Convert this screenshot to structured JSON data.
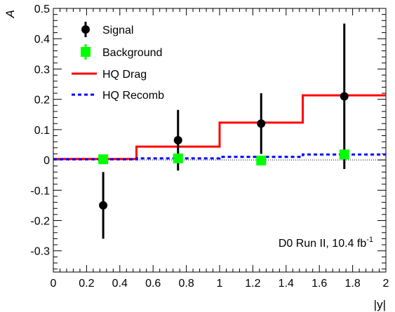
{
  "chart_data": {
    "type": "scatter",
    "title": "",
    "xlabel": "|y|",
    "ylabel": "A",
    "xlim": [
      0,
      2
    ],
    "ylim": [
      -0.37,
      0.5
    ],
    "x_ticks": [
      "0",
      "0.2",
      "0.4",
      "0.6",
      "0.8",
      "1",
      "1.2",
      "1.4",
      "1.6",
      "1.8",
      "2"
    ],
    "x_tick_values": [
      0,
      0.2,
      0.4,
      0.6,
      0.8,
      1.0,
      1.2,
      1.4,
      1.6,
      1.8,
      2.0
    ],
    "y_ticks": [
      "-0.3",
      "-0.2",
      "-0.1",
      "0",
      "0.1",
      "0.2",
      "0.3",
      "0.4",
      "0.5"
    ],
    "y_tick_values": [
      -0.3,
      -0.2,
      -0.1,
      0,
      0.1,
      0.2,
      0.3,
      0.4,
      0.5
    ],
    "grid": false,
    "legend_position": "top-left",
    "annotation": {
      "main": "D0 Run II, 10.4 fb",
      "superscript": "-1"
    },
    "series": [
      {
        "name": "Signal",
        "kind": "errorbar",
        "marker": "circle",
        "color": "#000000",
        "points": [
          {
            "x": 0.3,
            "y": -0.15,
            "ylow": -0.26,
            "yhigh": -0.04
          },
          {
            "x": 0.75,
            "y": 0.065,
            "ylow": -0.035,
            "yhigh": 0.165
          },
          {
            "x": 1.25,
            "y": 0.12,
            "ylow": 0.02,
            "yhigh": 0.22
          },
          {
            "x": 1.75,
            "y": 0.21,
            "ylow": -0.03,
            "yhigh": 0.45
          }
        ]
      },
      {
        "name": "Background",
        "kind": "errorbar",
        "marker": "square",
        "color": "#00ff00",
        "points": [
          {
            "x": 0.3,
            "y": 0.002,
            "ylow": -0.004,
            "yhigh": 0.008
          },
          {
            "x": 0.75,
            "y": 0.005,
            "ylow": -0.001,
            "yhigh": 0.011
          },
          {
            "x": 1.25,
            "y": -0.002,
            "ylow": -0.008,
            "yhigh": 0.004
          },
          {
            "x": 1.75,
            "y": 0.018,
            "ylow": 0.01,
            "yhigh": 0.026
          }
        ]
      },
      {
        "name": "HQ Drag",
        "kind": "step",
        "line": "solid",
        "color": "#ff0000",
        "bins": [
          {
            "x0": 0,
            "x1": 0.5,
            "y": 0.003
          },
          {
            "x0": 0.5,
            "x1": 1.0,
            "y": 0.044
          },
          {
            "x0": 1.0,
            "x1": 1.5,
            "y": 0.123
          },
          {
            "x0": 1.5,
            "x1": 2.0,
            "y": 0.213
          }
        ]
      },
      {
        "name": "HQ Recomb",
        "kind": "step",
        "line": "dashed",
        "color": "#0000ff",
        "bins": [
          {
            "x0": 0,
            "x1": 0.5,
            "y": 0.002
          },
          {
            "x0": 0.5,
            "x1": 1.0,
            "y": 0.005
          },
          {
            "x0": 1.0,
            "x1": 1.5,
            "y": 0.01
          },
          {
            "x0": 1.5,
            "x1": 2.0,
            "y": 0.018
          }
        ]
      }
    ]
  }
}
